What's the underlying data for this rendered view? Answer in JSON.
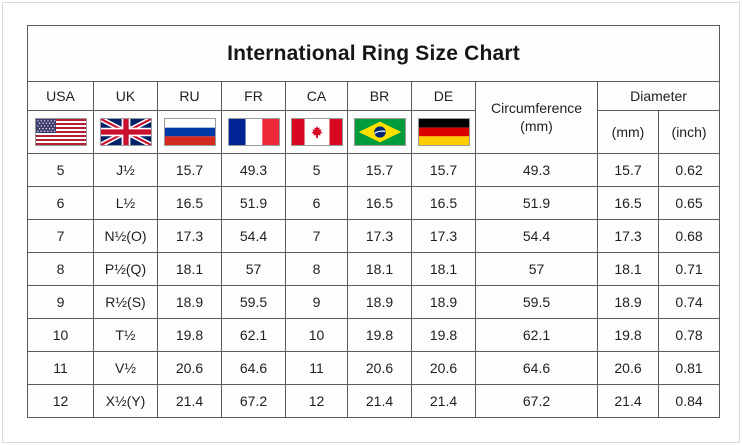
{
  "page": {
    "title": "International Ring Size Chart"
  },
  "chart_data": {
    "type": "table",
    "title": "International Ring Size Chart",
    "columns": [
      "USA",
      "UK",
      "RU",
      "FR",
      "CA",
      "BR",
      "DE",
      "Circumference (mm)",
      "Diameter (mm)",
      "Diameter (inch)"
    ],
    "header": {
      "countries": [
        {
          "code": "USA",
          "flag": "flag-usa-icon"
        },
        {
          "code": "UK",
          "flag": "flag-uk-icon"
        },
        {
          "code": "RU",
          "flag": "flag-russia-icon"
        },
        {
          "code": "FR",
          "flag": "flag-france-icon"
        },
        {
          "code": "CA",
          "flag": "flag-canada-icon"
        },
        {
          "code": "BR",
          "flag": "flag-brazil-icon"
        },
        {
          "code": "DE",
          "flag": "flag-germany-icon"
        }
      ],
      "circumference": {
        "line1": "Circumference",
        "line2": "(mm)"
      },
      "diameter": {
        "label": "Diameter",
        "mm": "(mm)",
        "inch": "(inch)"
      }
    },
    "rows": [
      {
        "usa": "5",
        "uk": "J½",
        "ru": "15.7",
        "fr": "49.3",
        "ca": "5",
        "br": "15.7",
        "de": "15.7",
        "circ_mm": "49.3",
        "dia_mm": "15.7",
        "dia_inch": "0.62"
      },
      {
        "usa": "6",
        "uk": "L½",
        "ru": "16.5",
        "fr": "51.9",
        "ca": "6",
        "br": "16.5",
        "de": "16.5",
        "circ_mm": "51.9",
        "dia_mm": "16.5",
        "dia_inch": "0.65"
      },
      {
        "usa": "7",
        "uk": "N½(O)",
        "ru": "17.3",
        "fr": "54.4",
        "ca": "7",
        "br": "17.3",
        "de": "17.3",
        "circ_mm": "54.4",
        "dia_mm": "17.3",
        "dia_inch": "0.68"
      },
      {
        "usa": "8",
        "uk": "P½(Q)",
        "ru": "18.1",
        "fr": "57",
        "ca": "8",
        "br": "18.1",
        "de": "18.1",
        "circ_mm": "57",
        "dia_mm": "18.1",
        "dia_inch": "0.71"
      },
      {
        "usa": "9",
        "uk": "R½(S)",
        "ru": "18.9",
        "fr": "59.5",
        "ca": "9",
        "br": "18.9",
        "de": "18.9",
        "circ_mm": "59.5",
        "dia_mm": "18.9",
        "dia_inch": "0.74"
      },
      {
        "usa": "10",
        "uk": "T½",
        "ru": "19.8",
        "fr": "62.1",
        "ca": "10",
        "br": "19.8",
        "de": "19.8",
        "circ_mm": "62.1",
        "dia_mm": "19.8",
        "dia_inch": "0.78"
      },
      {
        "usa": "11",
        "uk": "V½",
        "ru": "20.6",
        "fr": "64.6",
        "ca": "11",
        "br": "20.6",
        "de": "20.6",
        "circ_mm": "64.6",
        "dia_mm": "20.6",
        "dia_inch": "0.81"
      },
      {
        "usa": "12",
        "uk": "X½(Y)",
        "ru": "21.4",
        "fr": "67.2",
        "ca": "12",
        "br": "21.4",
        "de": "21.4",
        "circ_mm": "67.2",
        "dia_mm": "21.4",
        "dia_inch": "0.84"
      }
    ],
    "colors": {
      "grid_line": "#5a5a5a",
      "text": "#1f1f1f",
      "cell_background": "#fdfdfd",
      "title_text": "#161616"
    },
    "layout": {
      "legend_position": "none",
      "grid": true
    }
  }
}
